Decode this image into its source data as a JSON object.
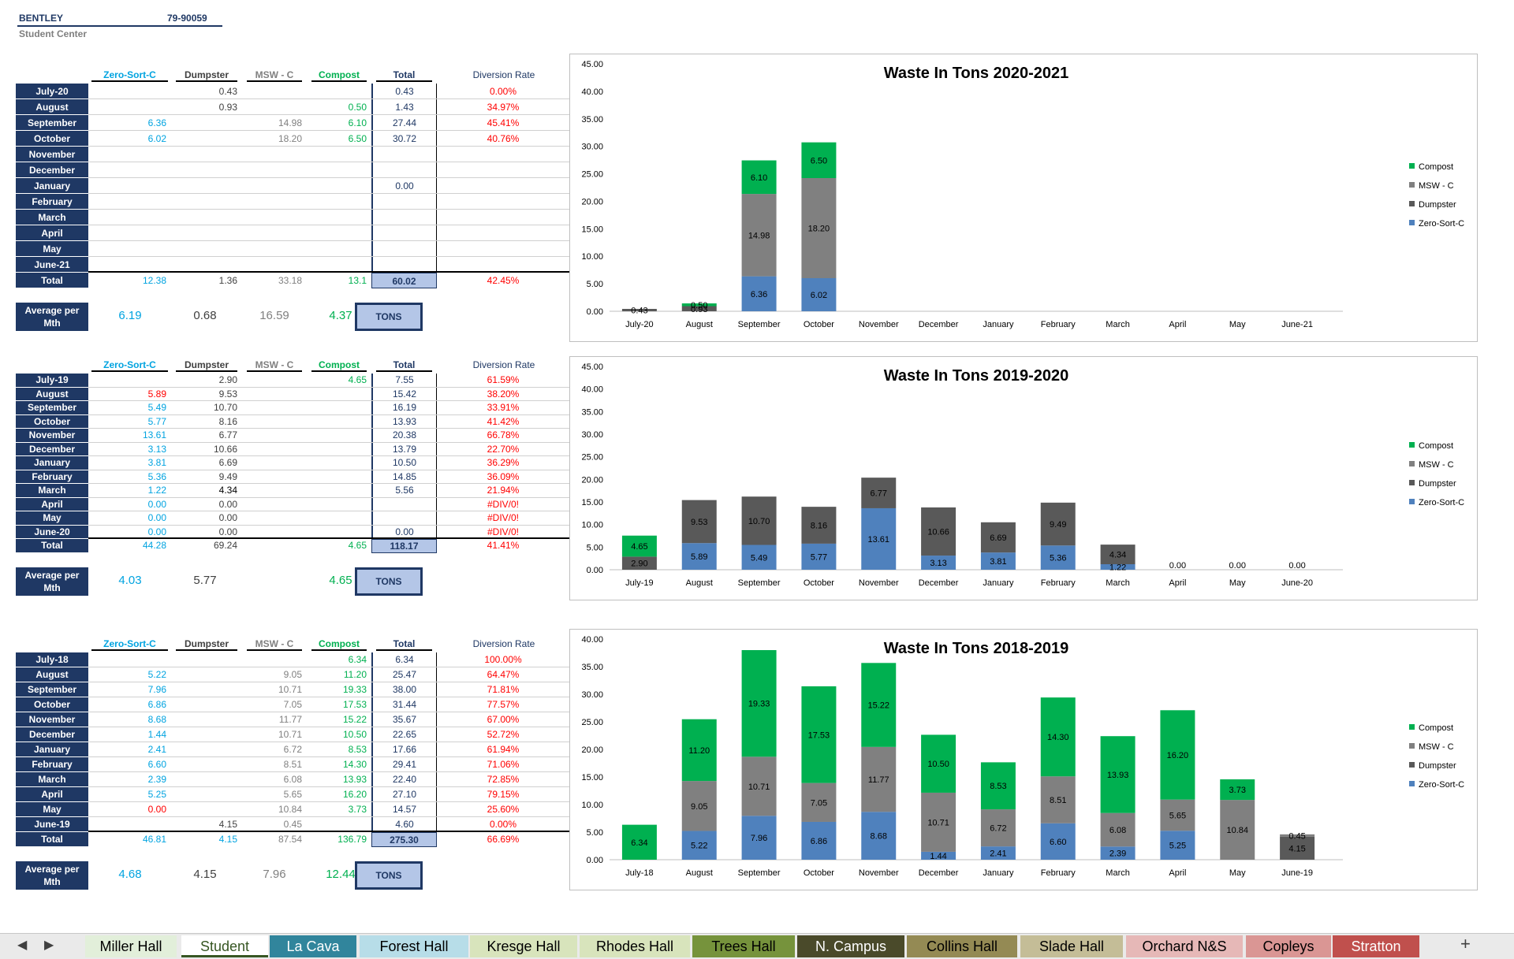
{
  "header": {
    "company": "BENTLEY",
    "account": "79-90059",
    "location": "Student Center"
  },
  "colors": {
    "zero_sort": "#4f81bd",
    "dumpster": "#595959",
    "msw": "#808080",
    "compost": "#00b050",
    "navy": "#1f3864",
    "red": "#ff0000"
  },
  "column_headers": {
    "zero_sort": "Zero-Sort-C",
    "dumpster": "Dumpster",
    "msw": "MSW - C",
    "compost": "Compost",
    "total": "Total",
    "diversion": "Diversion Rate"
  },
  "avg_label": "Average per Mth",
  "tons_label": "TONS",
  "tables": [
    {
      "rows": [
        {
          "m": "July-20",
          "zs": "",
          "dp": "0.43",
          "msw": "",
          "cp": "",
          "tot": "0.43",
          "dr": "0.00%"
        },
        {
          "m": "August",
          "zs": "",
          "dp": "0.93",
          "msw": "",
          "cp": "0.50",
          "tot": "1.43",
          "dr": "34.97%"
        },
        {
          "m": "September",
          "zs": "6.36",
          "dp": "",
          "msw": "14.98",
          "cp": "6.10",
          "tot": "27.44",
          "dr": "45.41%"
        },
        {
          "m": "October",
          "zs": "6.02",
          "dp": "",
          "msw": "18.20",
          "cp": "6.50",
          "tot": "30.72",
          "dr": "40.76%"
        },
        {
          "m": "November",
          "zs": "",
          "dp": "",
          "msw": "",
          "cp": "",
          "tot": "",
          "dr": ""
        },
        {
          "m": "December",
          "zs": "",
          "dp": "",
          "msw": "",
          "cp": "",
          "tot": "",
          "dr": ""
        },
        {
          "m": "January",
          "zs": "",
          "dp": "",
          "msw": "",
          "cp": "",
          "tot": "0.00",
          "dr": ""
        },
        {
          "m": "February",
          "zs": "",
          "dp": "",
          "msw": "",
          "cp": "",
          "tot": "",
          "dr": ""
        },
        {
          "m": "March",
          "zs": "",
          "dp": "",
          "msw": "",
          "cp": "",
          "tot": "",
          "dr": ""
        },
        {
          "m": "April",
          "zs": "",
          "dp": "",
          "msw": "",
          "cp": "",
          "tot": "",
          "dr": ""
        },
        {
          "m": "May",
          "zs": "",
          "dp": "",
          "msw": "",
          "cp": "",
          "tot": "",
          "dr": ""
        },
        {
          "m": "June-21",
          "zs": "",
          "dp": "",
          "msw": "",
          "cp": "",
          "tot": "",
          "dr": ""
        }
      ],
      "total": {
        "m": "Total",
        "zs": "12.38",
        "dp": "1.36",
        "msw": "33.18",
        "cp": "13.1",
        "tot": "60.02",
        "dr": "42.45%"
      },
      "avg": {
        "zs": "6.19",
        "dp": "0.68",
        "msw": "16.59",
        "cp": "4.37"
      }
    },
    {
      "rows": [
        {
          "m": "July-19",
          "zs": "",
          "dp": "2.90",
          "msw": "",
          "cp": "4.65",
          "tot": "7.55",
          "dr": "61.59%"
        },
        {
          "m": "August",
          "zs": "5.89",
          "dp": "9.53",
          "msw": "",
          "cp": "",
          "tot": "15.42",
          "dr": "38.20%"
        },
        {
          "m": "September",
          "zs": "5.49",
          "dp": "10.70",
          "msw": "",
          "cp": "",
          "tot": "16.19",
          "dr": "33.91%"
        },
        {
          "m": "October",
          "zs": "5.77",
          "dp": "8.16",
          "msw": "",
          "cp": "",
          "tot": "13.93",
          "dr": "41.42%"
        },
        {
          "m": "November",
          "zs": "13.61",
          "dp": "6.77",
          "msw": "",
          "cp": "",
          "tot": "20.38",
          "dr": "66.78%"
        },
        {
          "m": "December",
          "zs": "3.13",
          "dp": "10.66",
          "msw": "",
          "cp": "",
          "tot": "13.79",
          "dr": "22.70%"
        },
        {
          "m": "January",
          "zs": "3.81",
          "dp": "6.69",
          "msw": "",
          "cp": "",
          "tot": "10.50",
          "dr": "36.29%"
        },
        {
          "m": "February",
          "zs": "5.36",
          "dp": "9.49",
          "msw": "",
          "cp": "",
          "tot": "14.85",
          "dr": "36.09%"
        },
        {
          "m": "March",
          "zs": "1.22",
          "dp": "4.34",
          "msw": "",
          "cp": "",
          "tot": "5.56",
          "dr": "21.94%"
        },
        {
          "m": "April",
          "zs": "0.00",
          "dp": "0.00",
          "msw": "",
          "cp": "",
          "tot": "",
          "dr": "#DIV/0!"
        },
        {
          "m": "May",
          "zs": "0.00",
          "dp": "0.00",
          "msw": "",
          "cp": "",
          "tot": "",
          "dr": "#DIV/0!"
        },
        {
          "m": "June-20",
          "zs": "0.00",
          "dp": "0.00",
          "msw": "",
          "cp": "",
          "tot": "0.00",
          "dr": "#DIV/0!"
        }
      ],
      "total": {
        "m": "Total",
        "zs": "44.28",
        "dp": "69.24",
        "msw": "",
        "cp": "4.65",
        "tot": "118.17",
        "dr": "41.41%"
      },
      "avg": {
        "zs": "4.03",
        "dp": "5.77",
        "msw": "",
        "cp": "4.65"
      }
    },
    {
      "rows": [
        {
          "m": "July-18",
          "zs": "",
          "dp": "",
          "msw": "",
          "cp": "6.34",
          "tot": "6.34",
          "dr": "100.00%"
        },
        {
          "m": "August",
          "zs": "5.22",
          "dp": "",
          "msw": "9.05",
          "cp": "11.20",
          "tot": "25.47",
          "dr": "64.47%"
        },
        {
          "m": "September",
          "zs": "7.96",
          "dp": "",
          "msw": "10.71",
          "cp": "19.33",
          "tot": "38.00",
          "dr": "71.81%"
        },
        {
          "m": "October",
          "zs": "6.86",
          "dp": "",
          "msw": "7.05",
          "cp": "17.53",
          "tot": "31.44",
          "dr": "77.57%"
        },
        {
          "m": "November",
          "zs": "8.68",
          "dp": "",
          "msw": "11.77",
          "cp": "15.22",
          "tot": "35.67",
          "dr": "67.00%"
        },
        {
          "m": "December",
          "zs": "1.44",
          "dp": "",
          "msw": "10.71",
          "cp": "10.50",
          "tot": "22.65",
          "dr": "52.72%"
        },
        {
          "m": "January",
          "zs": "2.41",
          "dp": "",
          "msw": "6.72",
          "cp": "8.53",
          "tot": "17.66",
          "dr": "61.94%"
        },
        {
          "m": "February",
          "zs": "6.60",
          "dp": "",
          "msw": "8.51",
          "cp": "14.30",
          "tot": "29.41",
          "dr": "71.06%"
        },
        {
          "m": "March",
          "zs": "2.39",
          "dp": "",
          "msw": "6.08",
          "cp": "13.93",
          "tot": "22.40",
          "dr": "72.85%"
        },
        {
          "m": "April",
          "zs": "5.25",
          "dp": "",
          "msw": "5.65",
          "cp": "16.20",
          "tot": "27.10",
          "dr": "79.15%"
        },
        {
          "m": "May",
          "zs": "0.00",
          "dp": "",
          "msw": "10.84",
          "cp": "3.73",
          "tot": "14.57",
          "dr": "25.60%"
        },
        {
          "m": "June-19",
          "zs": "",
          "dp": "4.15",
          "msw": "0.45",
          "cp": "",
          "tot": "4.60",
          "dr": "0.00%"
        }
      ],
      "total": {
        "m": "Total",
        "zs": "46.81",
        "dp": "4.15",
        "msw": "87.54",
        "cp": "136.79",
        "tot": "275.30",
        "dr": "66.69%"
      },
      "avg": {
        "zs": "4.68",
        "dp": "4.15",
        "msw": "7.96",
        "cp": "12.44"
      }
    }
  ],
  "chart_data": [
    {
      "type": "bar",
      "title": "Waste In Tons 2020-2021",
      "categories": [
        "July-20",
        "August",
        "September",
        "October",
        "November",
        "December",
        "January",
        "February",
        "March",
        "April",
        "May",
        "June-21"
      ],
      "ylim": [
        0,
        45
      ],
      "yticks": [
        "0.00",
        "5.00",
        "10.00",
        "15.00",
        "20.00",
        "25.00",
        "30.00",
        "35.00",
        "40.00",
        "45.00"
      ],
      "series": [
        {
          "name": "Zero-Sort-C",
          "values": [
            0,
            0,
            6.36,
            6.02,
            0,
            0,
            0,
            0,
            0,
            0,
            0,
            0
          ]
        },
        {
          "name": "Dumpster",
          "values": [
            0.43,
            0.93,
            0,
            0,
            0,
            0,
            0,
            0,
            0,
            0,
            0,
            0
          ]
        },
        {
          "name": "MSW - C",
          "values": [
            0,
            0,
            14.98,
            18.2,
            0,
            0,
            0,
            0,
            0,
            0,
            0,
            0
          ]
        },
        {
          "name": "Compost",
          "values": [
            0,
            0.5,
            6.1,
            6.5,
            0,
            0,
            0,
            0,
            0,
            0,
            0,
            0
          ]
        }
      ],
      "legend": [
        "Compost",
        "MSW - C",
        "Dumpster",
        "Zero-Sort-C"
      ]
    },
    {
      "type": "bar",
      "title": "Waste In Tons 2019-2020",
      "categories": [
        "July-19",
        "August",
        "September",
        "October",
        "November",
        "December",
        "January",
        "February",
        "March",
        "April",
        "May",
        "June-20"
      ],
      "ylim": [
        0,
        45
      ],
      "yticks": [
        "0.00",
        "5.00",
        "10.00",
        "15.00",
        "20.00",
        "25.00",
        "30.00",
        "35.00",
        "40.00",
        "45.00"
      ],
      "series": [
        {
          "name": "Zero-Sort-C",
          "values": [
            0,
            5.89,
            5.49,
            5.77,
            13.61,
            3.13,
            3.81,
            5.36,
            1.22,
            0,
            0,
            0
          ]
        },
        {
          "name": "Dumpster",
          "values": [
            2.9,
            9.53,
            10.7,
            8.16,
            6.77,
            10.66,
            6.69,
            9.49,
            4.34,
            0,
            0,
            0
          ]
        },
        {
          "name": "MSW - C",
          "values": [
            0,
            0,
            0,
            0,
            0,
            0,
            0,
            0,
            0,
            0,
            0,
            0
          ]
        },
        {
          "name": "Compost",
          "values": [
            4.65,
            0,
            0,
            0,
            0,
            0,
            0,
            0,
            0,
            0,
            0,
            0
          ]
        }
      ],
      "legend": [
        "Compost",
        "MSW - C",
        "Dumpster",
        "Zero-Sort-C"
      ]
    },
    {
      "type": "bar",
      "title": "Waste In Tons 2018-2019",
      "categories": [
        "July-18",
        "August",
        "September",
        "October",
        "November",
        "December",
        "January",
        "February",
        "March",
        "April",
        "May",
        "June-19"
      ],
      "ylim": [
        0,
        40
      ],
      "yticks": [
        "0.00",
        "5.00",
        "10.00",
        "15.00",
        "20.00",
        "25.00",
        "30.00",
        "35.00",
        "40.00"
      ],
      "series": [
        {
          "name": "Zero-Sort-C",
          "values": [
            0,
            5.22,
            7.96,
            6.86,
            8.68,
            1.44,
            2.41,
            6.6,
            2.39,
            5.25,
            0,
            0
          ]
        },
        {
          "name": "Dumpster",
          "values": [
            0,
            0,
            0,
            0,
            0,
            0,
            0,
            0,
            0,
            0,
            0,
            4.15
          ]
        },
        {
          "name": "MSW - C",
          "values": [
            0,
            9.05,
            10.71,
            7.05,
            11.77,
            10.71,
            6.72,
            8.51,
            6.08,
            5.65,
            10.84,
            0.45
          ]
        },
        {
          "name": "Compost",
          "values": [
            6.34,
            11.2,
            19.33,
            17.53,
            15.22,
            10.5,
            8.53,
            14.3,
            13.93,
            16.2,
            3.73,
            0
          ]
        }
      ],
      "legend": [
        "Compost",
        "MSW - C",
        "Dumpster",
        "Zero-Sort-C"
      ]
    }
  ],
  "tabs": [
    {
      "label": "Miller Hall",
      "bg": "#e2efda",
      "fg": "#000000"
    },
    {
      "label": "Student",
      "bg": "#ffffff",
      "fg": "#375623"
    },
    {
      "label": "La Cava",
      "bg": "#31859c",
      "fg": "#ffffff"
    },
    {
      "label": "Forest Hall",
      "bg": "#b7dde8",
      "fg": "#000000"
    },
    {
      "label": "Kresge Hall",
      "bg": "#d8e4bc",
      "fg": "#000000"
    },
    {
      "label": "Rhodes Hall",
      "bg": "#d8e4bc",
      "fg": "#000000"
    },
    {
      "label": "Trees Hall",
      "bg": "#76933c",
      "fg": "#000000"
    },
    {
      "label": "N. Campus",
      "bg": "#4a4a2a",
      "fg": "#ffffff"
    },
    {
      "label": "Collins Hall",
      "bg": "#948a54",
      "fg": "#000000"
    },
    {
      "label": "Slade Hall",
      "bg": "#c4bd97",
      "fg": "#000000"
    },
    {
      "label": "Orchard N&S",
      "bg": "#e6b8b7",
      "fg": "#000000"
    },
    {
      "label": "Copleys",
      "bg": "#da9694",
      "fg": "#000000"
    },
    {
      "label": "Stratton",
      "bg": "#c0504d",
      "fg": "#ffffff"
    }
  ],
  "tabbar": {
    "prev_icon": "◀",
    "next_icon": "▶",
    "add_icon": "+"
  }
}
